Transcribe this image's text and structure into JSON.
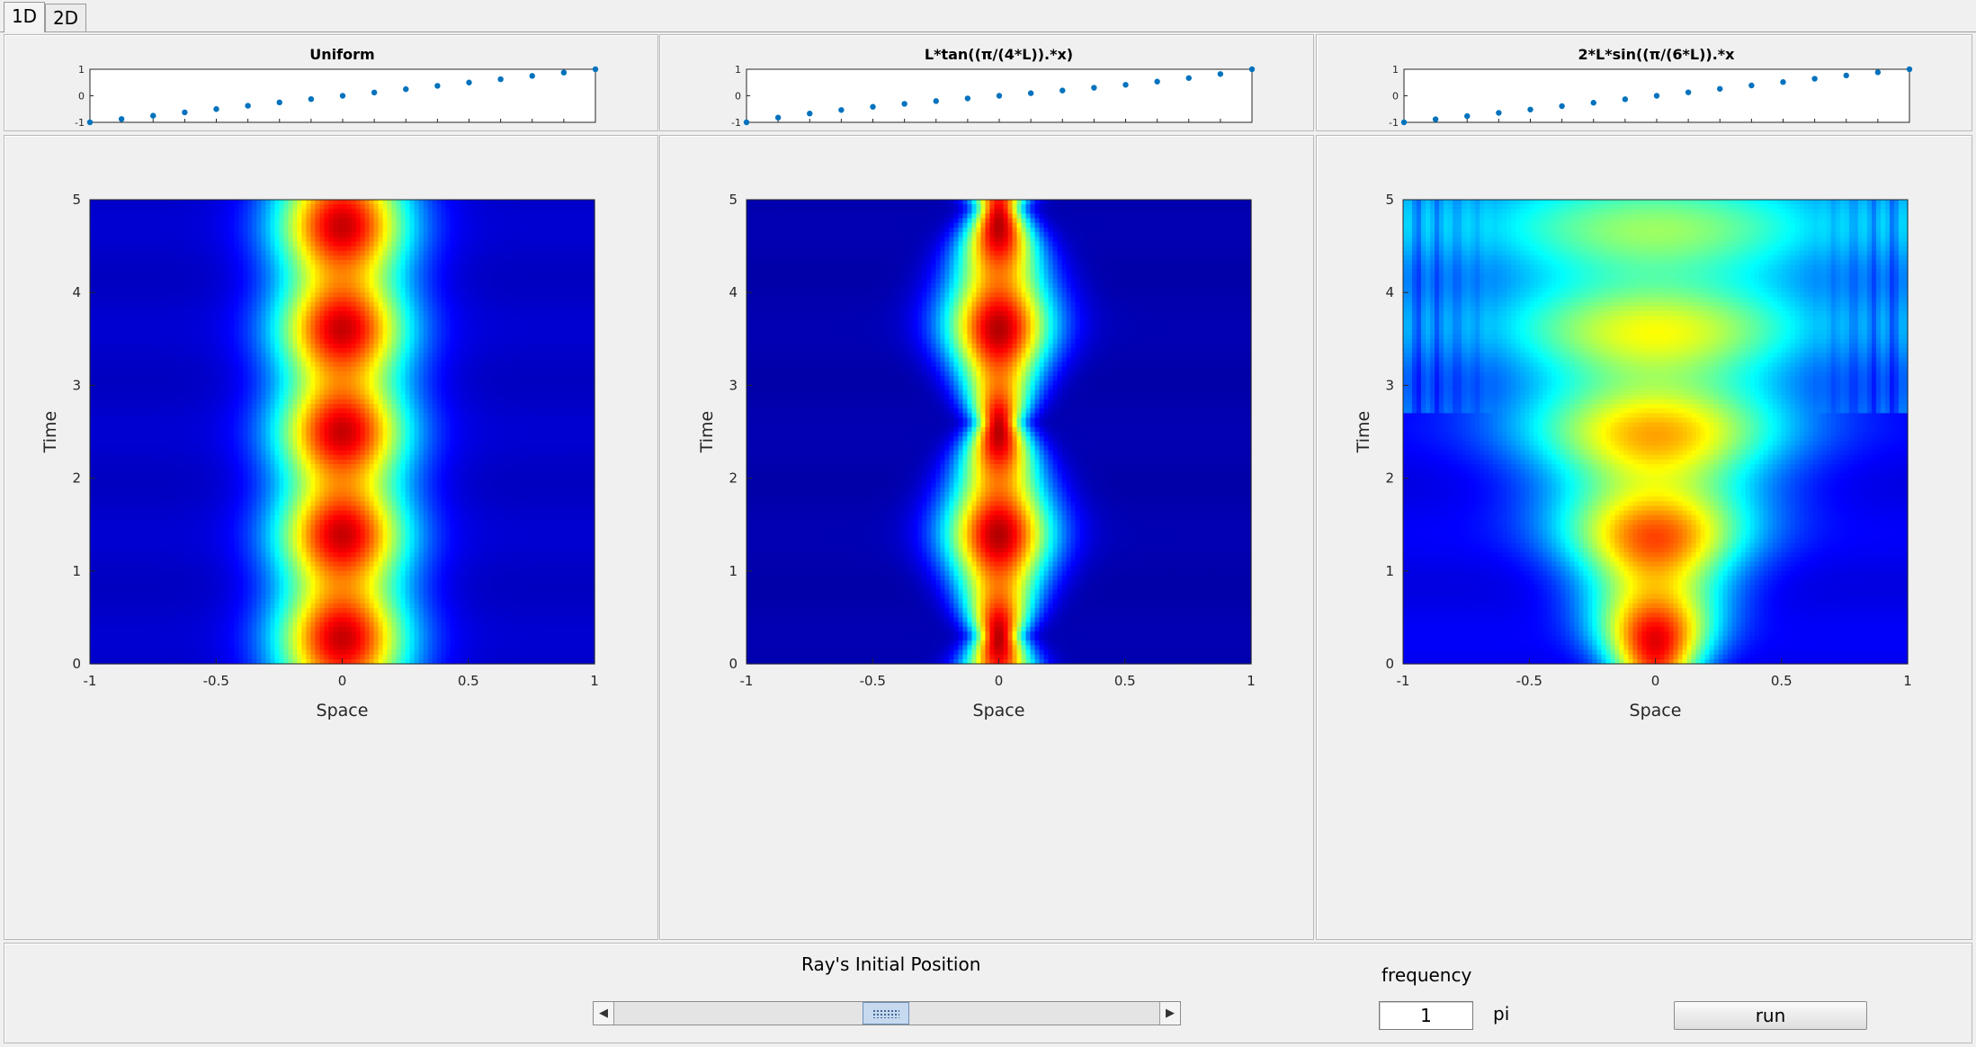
{
  "tabs": [
    {
      "label": "1D",
      "active": true
    },
    {
      "label": "2D",
      "active": false
    }
  ],
  "mesh_plots": [
    {
      "title": "Uniform",
      "y_ticks": [
        "1",
        "0",
        "-1"
      ],
      "points": 17,
      "mapping": "uniform"
    },
    {
      "title": "L*tan((π/(4*L)).*x)",
      "y_ticks": [
        "1",
        "0",
        "-1"
      ],
      "points": 17,
      "mapping": "tan"
    },
    {
      "title": "2*L*sin((π/(6*L)).*x",
      "y_ticks": [
        "1",
        "0",
        "-1"
      ],
      "points": 17,
      "mapping": "sin"
    }
  ],
  "field_plots": {
    "x_label": "Space",
    "y_label": "Time",
    "x_ticks": [
      "-1",
      "-0.5",
      "0",
      "0.5",
      "1"
    ],
    "y_ticks": [
      "0",
      "1",
      "2",
      "3",
      "4",
      "5"
    ],
    "xlim": [
      -1,
      1
    ],
    "ylim": [
      0,
      5
    ],
    "colormap": "jet",
    "colors": {
      "low": "#00007f",
      "high": "#7f0000"
    }
  },
  "controls": {
    "slider_label": "Ray's Initial Position",
    "slider_value": 0.5,
    "frequency_label": "frequency",
    "frequency_value": "1",
    "frequency_unit": "pi",
    "run_label": "run"
  }
}
